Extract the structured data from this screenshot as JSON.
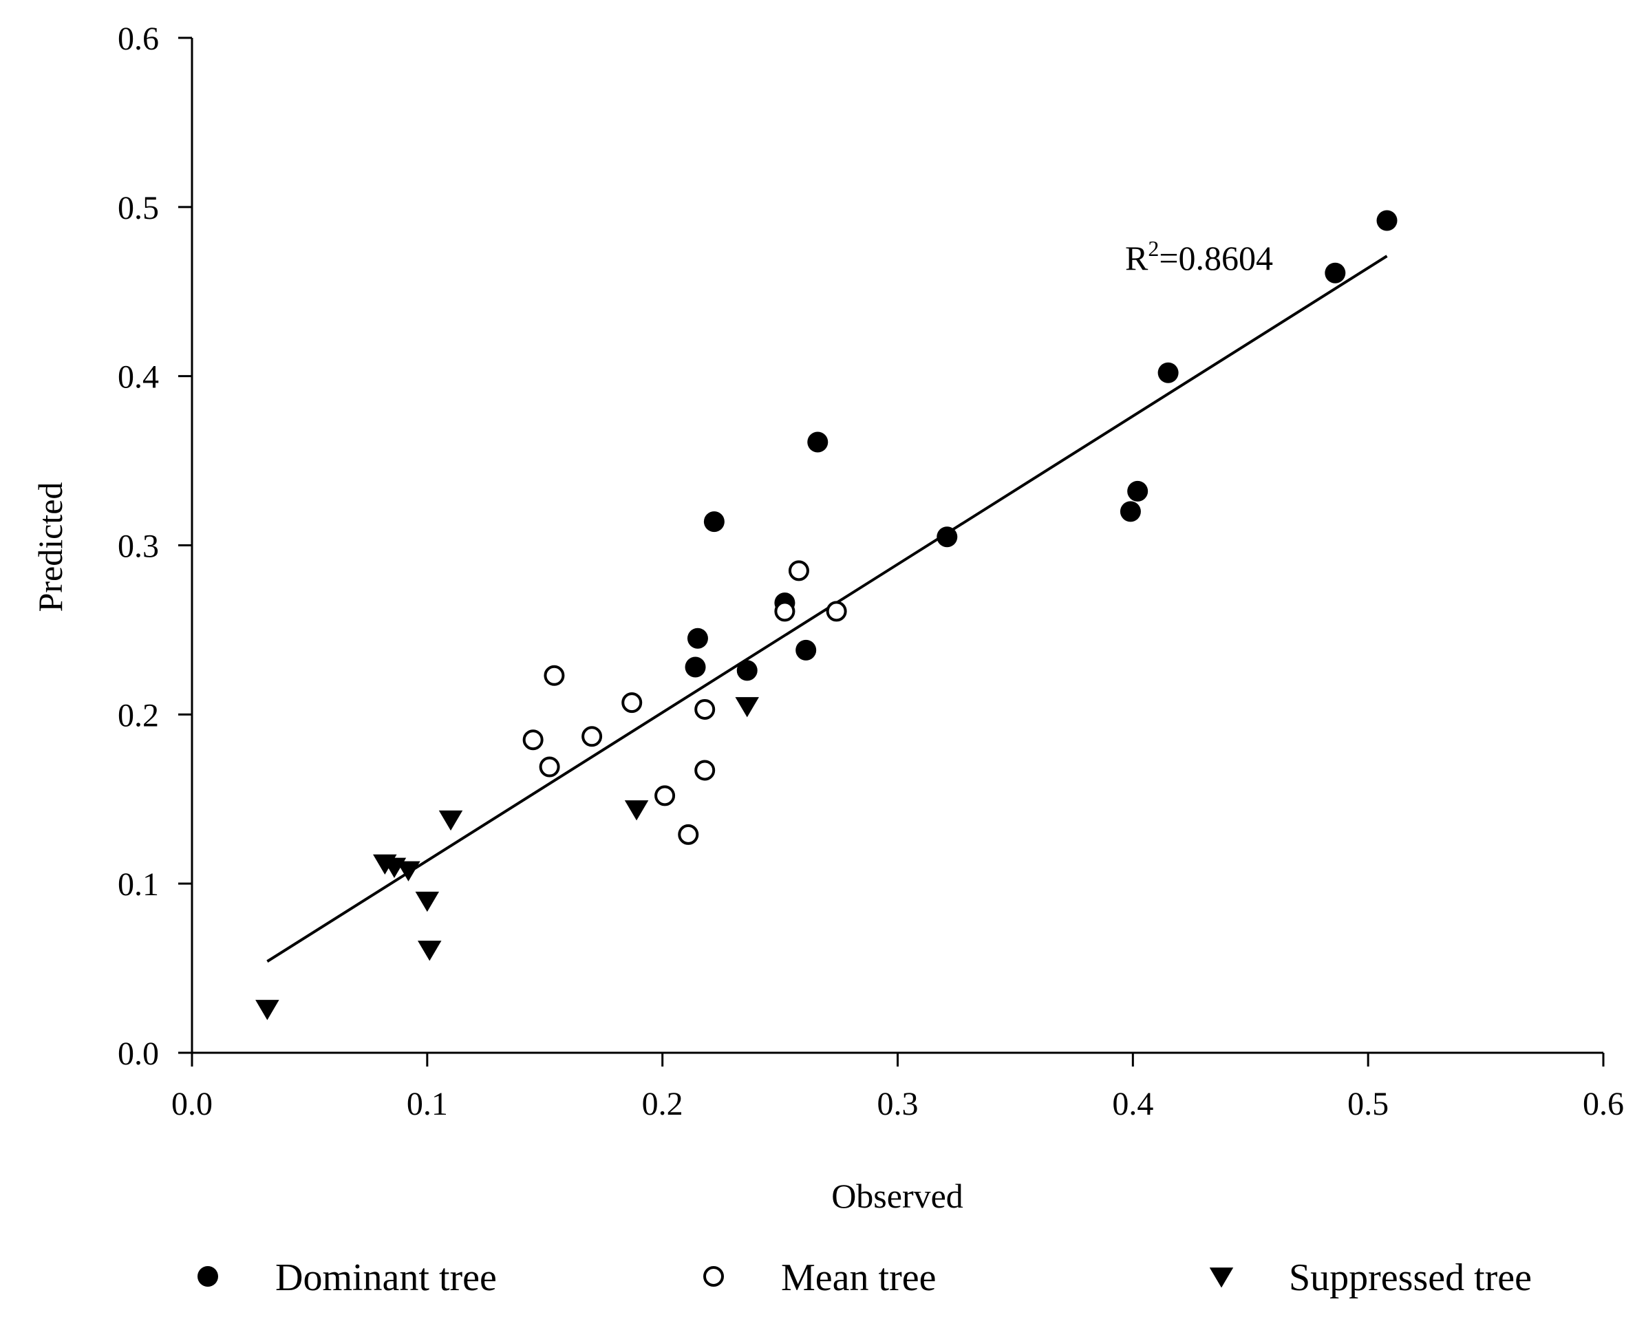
{
  "chart_data": {
    "type": "scatter",
    "title": "",
    "xlabel": "Observed",
    "ylabel": "Predicted",
    "xlim": [
      0.0,
      0.6
    ],
    "ylim": [
      0.0,
      0.6
    ],
    "x_ticks": [
      "0.0",
      "0.1",
      "0.2",
      "0.3",
      "0.4",
      "0.5",
      "0.6"
    ],
    "y_ticks": [
      "0.0",
      "0.1",
      "0.2",
      "0.3",
      "0.4",
      "0.5",
      "0.6"
    ],
    "grid": false,
    "legend_position": "bottom",
    "series": [
      {
        "name": "Dominant tree",
        "marker": "filled-circle",
        "color": "#000000",
        "points": [
          [
            0.508,
            0.492
          ],
          [
            0.486,
            0.461
          ],
          [
            0.415,
            0.402
          ],
          [
            0.402,
            0.332
          ],
          [
            0.399,
            0.32
          ],
          [
            0.321,
            0.305
          ],
          [
            0.266,
            0.361
          ],
          [
            0.222,
            0.314
          ],
          [
            0.252,
            0.266
          ],
          [
            0.215,
            0.245
          ],
          [
            0.214,
            0.228
          ],
          [
            0.236,
            0.226
          ],
          [
            0.261,
            0.238
          ]
        ]
      },
      {
        "name": "Mean tree",
        "marker": "open-circle",
        "color": "#000000",
        "points": [
          [
            0.258,
            0.285
          ],
          [
            0.274,
            0.261
          ],
          [
            0.252,
            0.261
          ],
          [
            0.154,
            0.223
          ],
          [
            0.187,
            0.207
          ],
          [
            0.218,
            0.203
          ],
          [
            0.145,
            0.185
          ],
          [
            0.17,
            0.187
          ],
          [
            0.152,
            0.169
          ],
          [
            0.218,
            0.167
          ],
          [
            0.201,
            0.152
          ],
          [
            0.211,
            0.129
          ]
        ]
      },
      {
        "name": "Suppressed tree",
        "marker": "filled-triangle-down",
        "color": "#000000",
        "points": [
          [
            0.236,
            0.205
          ],
          [
            0.189,
            0.144
          ],
          [
            0.11,
            0.138
          ],
          [
            0.082,
            0.112
          ],
          [
            0.086,
            0.11
          ],
          [
            0.092,
            0.108
          ],
          [
            0.1,
            0.09
          ],
          [
            0.101,
            0.061
          ],
          [
            0.032,
            0.026
          ]
        ]
      }
    ],
    "trend_line": {
      "x": [
        0.032,
        0.508
      ],
      "y": [
        0.054,
        0.471
      ]
    },
    "annotation": {
      "base": "R",
      "superscript": "2",
      "value": "=0.8604"
    }
  }
}
